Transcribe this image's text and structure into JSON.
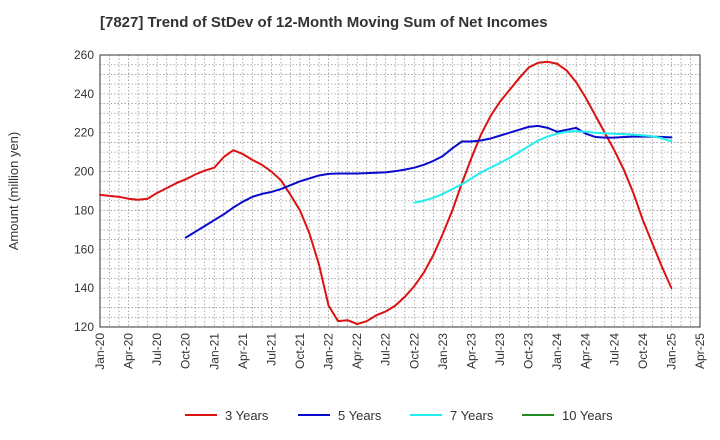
{
  "chart_data": {
    "type": "line",
    "title": "[7827]  Trend of StDev of 12-Month Moving Sum of Net Incomes",
    "ylabel": "Amount (million yen)",
    "xlabel": "",
    "ylim": [
      120,
      260
    ],
    "yticks": [
      120,
      140,
      160,
      180,
      200,
      220,
      240,
      260
    ],
    "xticks": [
      "Jan-20",
      "Apr-20",
      "Jul-20",
      "Oct-20",
      "Jan-21",
      "Apr-21",
      "Jul-21",
      "Oct-21",
      "Jan-22",
      "Apr-22",
      "Jul-22",
      "Oct-22",
      "Jan-23",
      "Apr-23",
      "Jul-23",
      "Oct-23",
      "Jan-24",
      "Apr-24",
      "Jul-24",
      "Oct-24",
      "Jan-25",
      "Apr-25"
    ],
    "grid": true,
    "legend_position": "bottom",
    "series": [
      {
        "name": "3 Years",
        "color": "#dd1111",
        "points": [
          [
            "Jan-20",
            188
          ],
          [
            "Feb-20",
            187.5
          ],
          [
            "Mar-20",
            187
          ],
          [
            "Apr-20",
            186
          ],
          [
            "May-20",
            185.5
          ],
          [
            "Jun-20",
            186
          ],
          [
            "Jul-20",
            189
          ],
          [
            "Aug-20",
            191.5
          ],
          [
            "Sep-20",
            194
          ],
          [
            "Oct-20",
            196
          ],
          [
            "Nov-20",
            198.5
          ],
          [
            "Dec-20",
            200.5
          ],
          [
            "Jan-21",
            202
          ],
          [
            "Feb-21",
            207.5
          ],
          [
            "Mar-21",
            211
          ],
          [
            "Apr-21",
            209
          ],
          [
            "May-21",
            206
          ],
          [
            "Jun-21",
            203.5
          ],
          [
            "Jul-21",
            200
          ],
          [
            "Aug-21",
            195.5
          ],
          [
            "Sep-21",
            188
          ],
          [
            "Oct-21",
            180
          ],
          [
            "Nov-21",
            168
          ],
          [
            "Dec-21",
            152
          ],
          [
            "Jan-22",
            131
          ],
          [
            "Feb-22",
            123
          ],
          [
            "Mar-22",
            123.5
          ],
          [
            "Apr-22",
            121.5
          ],
          [
            "May-22",
            123
          ],
          [
            "Jun-22",
            126
          ],
          [
            "Jul-22",
            128
          ],
          [
            "Aug-22",
            131
          ],
          [
            "Sep-22",
            135.5
          ],
          [
            "Oct-22",
            141
          ],
          [
            "Nov-22",
            148
          ],
          [
            "Dec-22",
            157
          ],
          [
            "Jan-23",
            168
          ],
          [
            "Feb-23",
            180
          ],
          [
            "Mar-23",
            194
          ],
          [
            "Apr-23",
            207
          ],
          [
            "May-23",
            219
          ],
          [
            "Jun-23",
            228.5
          ],
          [
            "Jul-23",
            236
          ],
          [
            "Aug-23",
            242
          ],
          [
            "Sep-23",
            248
          ],
          [
            "Oct-23",
            253.5
          ],
          [
            "Nov-23",
            256
          ],
          [
            "Dec-23",
            256.5
          ],
          [
            "Jan-24",
            255.5
          ],
          [
            "Feb-24",
            252
          ],
          [
            "Mar-24",
            246
          ],
          [
            "Apr-24",
            238
          ],
          [
            "May-24",
            229
          ],
          [
            "Jun-24",
            220
          ],
          [
            "Jul-24",
            211
          ],
          [
            "Aug-24",
            201
          ],
          [
            "Sep-24",
            189
          ],
          [
            "Oct-24",
            175
          ],
          [
            "Nov-24",
            163
          ],
          [
            "Dec-24",
            151
          ],
          [
            "Jan-25",
            140
          ]
        ]
      },
      {
        "name": "5 Years",
        "color": "#0a0acc",
        "points": [
          [
            "Oct-20",
            166
          ],
          [
            "Nov-20",
            169
          ],
          [
            "Dec-20",
            172
          ],
          [
            "Jan-21",
            175
          ],
          [
            "Feb-21",
            178
          ],
          [
            "Mar-21",
            181.5
          ],
          [
            "Apr-21",
            184.5
          ],
          [
            "May-21",
            187
          ],
          [
            "Jun-21",
            188.5
          ],
          [
            "Jul-21",
            189.5
          ],
          [
            "Aug-21",
            191
          ],
          [
            "Sep-21",
            193
          ],
          [
            "Oct-21",
            195
          ],
          [
            "Nov-21",
            196.5
          ],
          [
            "Dec-21",
            198
          ],
          [
            "Jan-22",
            198.8
          ],
          [
            "Feb-22",
            199
          ],
          [
            "Mar-22",
            199
          ],
          [
            "Apr-22",
            199
          ],
          [
            "May-22",
            199.2
          ],
          [
            "Jun-22",
            199.4
          ],
          [
            "Jul-22",
            199.6
          ],
          [
            "Aug-22",
            200.2
          ],
          [
            "Sep-22",
            201
          ],
          [
            "Oct-22",
            202
          ],
          [
            "Nov-22",
            203.5
          ],
          [
            "Dec-22",
            205.5
          ],
          [
            "Jan-23",
            208
          ],
          [
            "Feb-23",
            212
          ],
          [
            "Mar-23",
            215.5
          ],
          [
            "Apr-23",
            215.5
          ],
          [
            "May-23",
            216
          ],
          [
            "Jun-23",
            217
          ],
          [
            "Jul-23",
            218.5
          ],
          [
            "Aug-23",
            220
          ],
          [
            "Sep-23",
            221.5
          ],
          [
            "Oct-23",
            223
          ],
          [
            "Nov-23",
            223.5
          ],
          [
            "Dec-23",
            222.5
          ],
          [
            "Jan-24",
            220.5
          ],
          [
            "Feb-24",
            221.5
          ],
          [
            "Mar-24",
            222.5
          ],
          [
            "Apr-24",
            219.5
          ],
          [
            "May-24",
            217.8
          ],
          [
            "Jun-24",
            217.5
          ],
          [
            "Jul-24",
            217.5
          ],
          [
            "Aug-24",
            217.8
          ],
          [
            "Sep-24",
            218
          ],
          [
            "Oct-24",
            218
          ],
          [
            "Nov-24",
            218
          ],
          [
            "Dec-24",
            217.8
          ],
          [
            "Jan-25",
            217.6
          ]
        ]
      },
      {
        "name": "7 Years",
        "color": "#22eeee",
        "points": [
          [
            "Oct-22",
            184
          ],
          [
            "Nov-22",
            185
          ],
          [
            "Dec-22",
            186.5
          ],
          [
            "Jan-23",
            188.5
          ],
          [
            "Feb-23",
            191
          ],
          [
            "Mar-23",
            193.5
          ],
          [
            "Apr-23",
            196.5
          ],
          [
            "May-23",
            199.5
          ],
          [
            "Jun-23",
            202
          ],
          [
            "Jul-23",
            204.5
          ],
          [
            "Aug-23",
            207
          ],
          [
            "Sep-23",
            210
          ],
          [
            "Oct-23",
            213
          ],
          [
            "Nov-23",
            216
          ],
          [
            "Dec-23",
            218
          ],
          [
            "Jan-24",
            219.5
          ],
          [
            "Feb-24",
            220.5
          ],
          [
            "Mar-24",
            220.8
          ],
          [
            "Apr-24",
            220.5
          ],
          [
            "May-24",
            220
          ],
          [
            "Jun-24",
            219.7
          ],
          [
            "Jul-24",
            219.5
          ],
          [
            "Aug-24",
            219.3
          ],
          [
            "Sep-24",
            219
          ],
          [
            "Oct-24",
            218.6
          ],
          [
            "Nov-24",
            218.2
          ],
          [
            "Dec-24",
            217.2
          ],
          [
            "Jan-25",
            215.5
          ]
        ]
      },
      {
        "name": "10 Years",
        "color": "#228b22",
        "points": []
      }
    ]
  }
}
